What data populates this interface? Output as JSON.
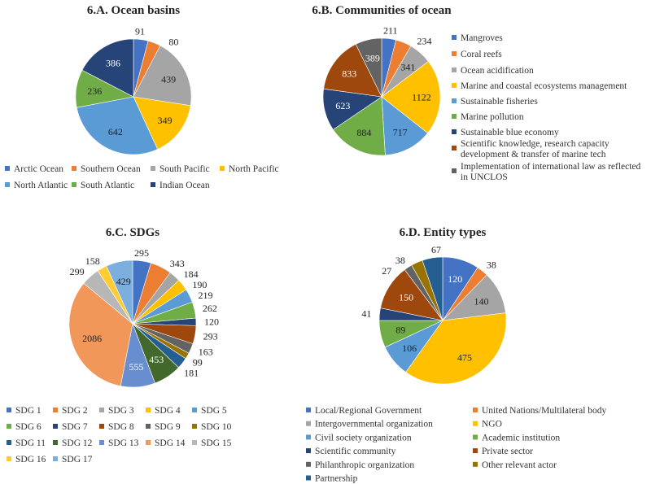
{
  "colors": [
    "#4472C4",
    "#ED7D31",
    "#A5A5A5",
    "#FFC000",
    "#5B9BD5",
    "#70AD47",
    "#264478",
    "#9E480E",
    "#636363",
    "#997300",
    "#255E91",
    "#43682B",
    "#698ED0",
    "#F1975A",
    "#B7B7B7",
    "#FFCD33",
    "#7CAFDD"
  ],
  "chart_data": [
    {
      "type": "pie",
      "title": "6.A. Ocean basins",
      "legend": "bottom",
      "categories": [
        "Arctic Ocean",
        "Southern Ocean",
        "South Pacific",
        "North Pacific",
        "North Atlantic",
        "South Atlantic",
        "Indian Ocean"
      ],
      "values": [
        91,
        80,
        439,
        349,
        642,
        236,
        386
      ]
    },
    {
      "type": "pie",
      "title": "6.B. Communities of ocean",
      "legend": "right",
      "categories": [
        "Mangroves",
        "Coral reefs",
        "Ocean acidification",
        "Marine and coastal ecosystems management",
        "Sustainable fisheries",
        "Marine pollution",
        "Sustainable blue economy",
        "Scientific knowledge, research capacity development & transfer of marine tech",
        "Implementation of international law as reflected in UNCLOS"
      ],
      "values": [
        211,
        234,
        341,
        1122,
        717,
        884,
        623,
        833,
        389
      ]
    },
    {
      "type": "pie",
      "title": "6.C. SDGs",
      "legend": "bottom",
      "categories": [
        "SDG 1",
        "SDG 2",
        "SDG 3",
        "SDG 4",
        "SDG 5",
        "SDG 6",
        "SDG 7",
        "SDG 8",
        "SDG 9",
        "SDG 10",
        "SDG 11",
        "SDG 12",
        "SDG 13",
        "SDG 14",
        "SDG 15",
        "SDG 16",
        "SDG 17"
      ],
      "values": [
        295,
        343,
        184,
        190,
        219,
        262,
        120,
        293,
        163,
        99,
        181,
        453,
        555,
        2086,
        299,
        158,
        429
      ]
    },
    {
      "type": "pie",
      "title": "6.D. Entity types",
      "legend": "bottom",
      "categories": [
        "Local/Regional Government",
        "United Nations/Multilateral body",
        "Intergovernmental organization",
        "NGO",
        "Civil society organization",
        "Academic institution",
        "Scientific community",
        "Private sector",
        "Philanthropic organization",
        "Other relevant actor",
        "Partnership"
      ],
      "values": [
        120,
        38,
        140,
        475,
        106,
        89,
        41,
        150,
        27,
        38,
        67
      ]
    }
  ]
}
